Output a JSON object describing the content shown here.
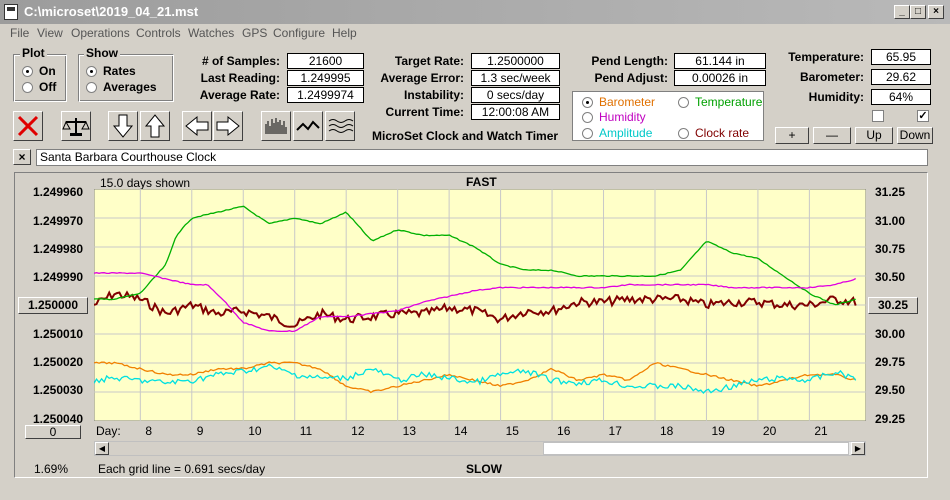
{
  "window": {
    "title": "C:\\microset\\2019_04_21.mst"
  },
  "menu": [
    "File",
    "View",
    "Operations",
    "Controls",
    "Watches",
    "GPS",
    "Configure",
    "Help"
  ],
  "plot_group": {
    "label": "Plot",
    "options": [
      "On",
      "Off"
    ],
    "selected": "On"
  },
  "show_group": {
    "label": "Show",
    "options": [
      "Rates",
      "Averages"
    ],
    "selected": "Rates"
  },
  "stats": {
    "samples_label": "# of Samples:",
    "samples": "21600",
    "last_label": "Last Reading:",
    "last": "1.249995",
    "avg_rate_label": "Average Rate:",
    "avg_rate": "1.2499974",
    "target_label": "Target Rate:",
    "target": "1.2500000",
    "avg_err_label": "Average Error:",
    "avg_err": "1.3 sec/week",
    "instab_label": "Instability:",
    "instab": "0 secs/day",
    "time_label": "Current Time:",
    "time": "12:00:08 AM",
    "pend_len_label": "Pend Length:",
    "pend_len": "61.144 in",
    "pend_adj_label": "Pend Adjust:",
    "pend_adj": "0.00026 in",
    "temp_label": "Temperature:",
    "temp": "65.95",
    "baro_label": "Barometer:",
    "baro": "29.62",
    "hum_label": "Humidity:",
    "hum": "64%"
  },
  "app_subtitle": "MicroSet Clock and Watch Timer",
  "series_select": {
    "selected": "Barometer",
    "items": [
      {
        "label": "Barometer",
        "color": "#e07000"
      },
      {
        "label": "Temperature",
        "color": "#00a000"
      },
      {
        "label": "Humidity",
        "color": "#c000c0"
      },
      {
        "label": "Amplitude",
        "color": "#00c8c8"
      },
      {
        "label": "Clock rate",
        "color": "#800000"
      }
    ]
  },
  "scale_buttons": [
    "+",
    "—",
    "Up",
    "Down"
  ],
  "checkboxes": [
    false,
    true
  ],
  "description": "Santa Barbara Courthouse Clock",
  "close_label": "×",
  "plot": {
    "days_shown": "15.0 days shown",
    "top_label": "FAST",
    "bottom_label": "SLOW",
    "grid_note": "Each grid line = 0.691 secs/day",
    "percent": "1.69%",
    "day_label": "Day:",
    "left_axis": [
      "1.249960",
      "1.249970",
      "1.249980",
      "1.249990",
      "1.250000",
      "1.250010",
      "1.250020",
      "1.250030",
      "1.250040"
    ],
    "left_button": "1.250000",
    "left_zero_button": "0",
    "right_axis": [
      "31.25",
      "31.00",
      "30.75",
      "30.50",
      "30.25",
      "30.00",
      "29.75",
      "29.50",
      "29.25"
    ],
    "right_button": "30.25",
    "days": [
      "8",
      "9",
      "10",
      "11",
      "12",
      "13",
      "14",
      "15",
      "16",
      "17",
      "18",
      "19",
      "20",
      "21"
    ]
  },
  "chart_data": {
    "type": "line",
    "x_unit": "day",
    "xlim": [
      7.1,
      22.1
    ],
    "left_ylim": [
      1.24996,
      1.25004
    ],
    "right_ylim": [
      29.25,
      31.25
    ],
    "series": [
      {
        "name": "Clock rate",
        "axis": "left",
        "color": "#800000",
        "x": [
          7.1,
          7.5,
          8,
          8.5,
          9,
          9.5,
          10,
          10.5,
          11,
          11.5,
          12,
          12.5,
          13,
          13.5,
          14,
          14.5,
          15,
          15.5,
          16,
          16.5,
          17,
          17.5,
          18,
          18.5,
          19,
          19.5,
          20,
          20.5,
          21,
          21.5,
          21.9
        ],
        "y": [
          1.25,
          1.249996,
          1.249998,
          1.250003,
          1.25,
          1.250003,
          1.250002,
          1.250004,
          1.250007,
          1.250003,
          1.250005,
          1.250004,
          1.250003,
          1.250003,
          1.250001,
          1.250002,
          1.250005,
          1.250002,
          1.250002,
          1.249999,
          1.249999,
          1.249998,
          1.249998,
          1.249998,
          1.25,
          1.249999,
          1.249999,
          1.25,
          1.25,
          1.249998,
          1.249999
        ]
      },
      {
        "name": "Temperature",
        "axis": "right",
        "color": "#00b000",
        "x": [
          7.1,
          7.5,
          8,
          8.5,
          8.7,
          9,
          9.5,
          10,
          10.5,
          11,
          11.5,
          12,
          12.5,
          13,
          13.5,
          14,
          14.5,
          15,
          15.5,
          16,
          16.5,
          17,
          17.5,
          18,
          18.5,
          19,
          19.5,
          20,
          20.5,
          21,
          21.5,
          21.9
        ],
        "y": [
          30.3,
          30.3,
          30.35,
          30.6,
          30.85,
          31.0,
          31.05,
          31.1,
          30.95,
          31.0,
          30.95,
          31.05,
          30.8,
          30.9,
          30.85,
          30.85,
          30.75,
          30.6,
          30.55,
          30.55,
          30.5,
          30.5,
          30.5,
          30.5,
          30.55,
          30.8,
          30.7,
          30.65,
          30.5,
          30.35,
          30.25,
          30.3
        ]
      },
      {
        "name": "Humidity",
        "axis": "left",
        "color": "#e000e0",
        "x": [
          7.1,
          7.5,
          8,
          8.5,
          9,
          9.3,
          9.6,
          10,
          10.5,
          11,
          11.5,
          12,
          12.5,
          13,
          13.5,
          14,
          14.5,
          15,
          15.5,
          16,
          16.5,
          17,
          17.5,
          18,
          18.5,
          19,
          19.5,
          20,
          20.5,
          21,
          21.5,
          21.9
        ],
        "y": [
          1.249989,
          1.249989,
          1.249989,
          1.249991,
          1.249993,
          1.249993,
          1.249998,
          1.250006,
          1.250009,
          1.250009,
          1.250004,
          1.250004,
          1.250003,
          1.250002,
          1.249999,
          1.249997,
          1.249995,
          1.249994,
          1.249994,
          1.249994,
          1.249994,
          1.249994,
          1.249993,
          1.249993,
          1.249993,
          1.249993,
          1.249994,
          1.249994,
          1.249994,
          1.249994,
          1.249993,
          1.249991
        ]
      },
      {
        "name": "Barometer",
        "axis": "right",
        "color": "#f08000",
        "x": [
          7.1,
          7.5,
          8,
          8.5,
          9,
          9.5,
          10,
          10.5,
          11,
          11.5,
          12,
          12.5,
          13,
          13.5,
          14,
          14.5,
          15,
          15.5,
          16,
          16.5,
          17,
          17.5,
          18,
          18.5,
          19,
          19.5,
          20,
          20.5,
          21,
          21.5,
          21.9
        ],
        "y": [
          29.75,
          29.75,
          29.7,
          29.65,
          29.65,
          29.7,
          29.7,
          29.75,
          29.75,
          29.7,
          29.55,
          29.5,
          29.55,
          29.6,
          29.65,
          29.6,
          29.55,
          29.6,
          29.7,
          29.6,
          29.65,
          29.6,
          29.75,
          29.7,
          29.65,
          29.6,
          29.55,
          29.6,
          29.65,
          29.65,
          29.6
        ]
      },
      {
        "name": "Amplitude",
        "axis": "right",
        "color": "#00e0e0",
        "x": [
          7.1,
          7.5,
          8,
          8.5,
          9,
          9.5,
          10,
          10.5,
          11,
          11.5,
          12,
          12.5,
          13,
          13.5,
          14,
          14.5,
          15,
          15.5,
          16,
          16.5,
          17,
          17.5,
          18,
          18.5,
          19,
          19.5,
          20,
          20.5,
          21,
          21.5,
          21.9
        ],
        "y": [
          29.6,
          29.62,
          29.6,
          29.58,
          29.6,
          29.65,
          29.68,
          29.72,
          29.65,
          29.62,
          29.62,
          29.7,
          29.6,
          29.65,
          29.62,
          29.58,
          29.65,
          29.68,
          29.6,
          29.58,
          29.6,
          29.55,
          29.55,
          29.55,
          29.5,
          29.55,
          29.6,
          29.62,
          29.6,
          29.67,
          29.62
        ]
      }
    ]
  }
}
